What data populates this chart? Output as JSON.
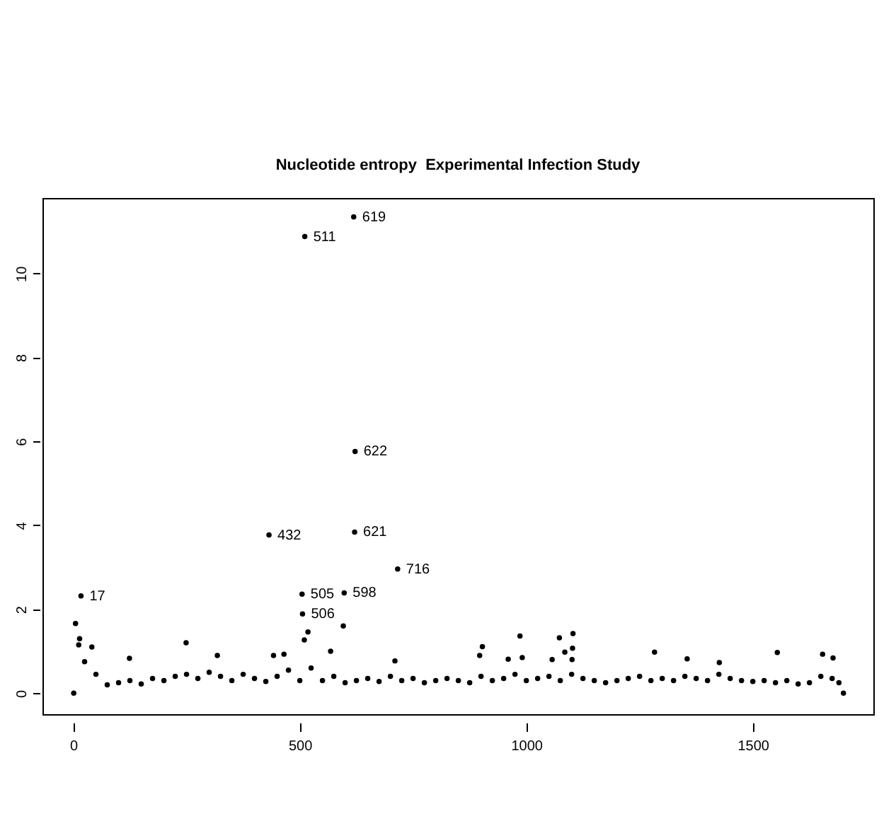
{
  "chart_data": {
    "type": "scatter",
    "title": "Nucleotide entropy  Experimental Infection Study",
    "marker": "circle",
    "grid": false,
    "xlim": [
      -68,
      1766
    ],
    "ylim": [
      -0.5,
      11.8
    ],
    "xticks": [
      0,
      500,
      1000,
      1500
    ],
    "yticks": [
      0,
      2,
      4,
      6,
      8,
      10
    ],
    "series": [
      {
        "color": "#000000",
        "x": [
          1,
          5,
          12,
          14,
          17,
          25,
          41,
          50,
          75,
          100,
          124,
          125,
          150,
          175,
          200,
          225,
          249,
          250,
          275,
          300,
          318,
          325,
          350,
          375,
          400,
          425,
          432,
          442,
          450,
          465,
          475,
          500,
          505,
          506,
          510,
          511,
          518,
          525,
          550,
          568,
          575,
          596,
          598,
          600,
          619,
          621,
          622,
          625,
          650,
          675,
          700,
          710,
          716,
          725,
          750,
          775,
          800,
          825,
          850,
          875,
          897,
          900,
          903,
          925,
          950,
          960,
          975,
          986,
          991,
          1000,
          1025,
          1050,
          1057,
          1073,
          1075,
          1085,
          1100,
          1101,
          1102,
          1103,
          1125,
          1150,
          1175,
          1200,
          1225,
          1250,
          1275,
          1283,
          1300,
          1325,
          1350,
          1355,
          1375,
          1400,
          1425,
          1426,
          1450,
          1475,
          1500,
          1525,
          1550,
          1554,
          1575,
          1600,
          1625,
          1650,
          1654,
          1675,
          1677,
          1690,
          1700
        ],
        "values": [
          0,
          1.66,
          1.15,
          1.3,
          2.32,
          0.75,
          1.1,
          0.45,
          0.2,
          0.25,
          0.83,
          0.3,
          0.22,
          0.35,
          0.3,
          0.4,
          1.2,
          0.45,
          0.35,
          0.5,
          0.9,
          0.4,
          0.3,
          0.45,
          0.35,
          0.28,
          3.77,
          0.9,
          0.4,
          0.93,
          0.55,
          0.3,
          2.36,
          1.89,
          1.27,
          10.88,
          1.46,
          0.6,
          0.3,
          1.0,
          0.4,
          1.6,
          2.39,
          0.25,
          11.35,
          3.84,
          5.76,
          0.3,
          0.35,
          0.28,
          0.4,
          0.77,
          2.96,
          0.3,
          0.35,
          0.25,
          0.3,
          0.35,
          0.3,
          0.25,
          0.9,
          0.4,
          1.11,
          0.3,
          0.35,
          0.81,
          0.45,
          1.36,
          0.85,
          0.3,
          0.35,
          0.4,
          0.8,
          1.32,
          0.3,
          0.98,
          0.45,
          0.8,
          1.07,
          1.42,
          0.35,
          0.3,
          0.25,
          0.3,
          0.35,
          0.4,
          0.3,
          0.98,
          0.35,
          0.3,
          0.4,
          0.82,
          0.35,
          0.3,
          0.45,
          0.73,
          0.35,
          0.3,
          0.28,
          0.3,
          0.25,
          0.97,
          0.3,
          0.22,
          0.25,
          0.4,
          0.93,
          0.35,
          0.84,
          0.25,
          0
        ]
      }
    ],
    "annotations": [
      {
        "text": "17",
        "x": 17,
        "y": 2.32
      },
      {
        "text": "432",
        "x": 432,
        "y": 3.77
      },
      {
        "text": "505",
        "x": 505,
        "y": 2.36
      },
      {
        "text": "506",
        "x": 506,
        "y": 1.89
      },
      {
        "text": "511",
        "x": 511,
        "y": 10.88
      },
      {
        "text": "598",
        "x": 598,
        "y": 2.39
      },
      {
        "text": "619",
        "x": 619,
        "y": 11.35
      },
      {
        "text": "621",
        "x": 621,
        "y": 3.84
      },
      {
        "text": "622",
        "x": 622,
        "y": 5.76
      },
      {
        "text": "716",
        "x": 716,
        "y": 2.96
      }
    ]
  }
}
